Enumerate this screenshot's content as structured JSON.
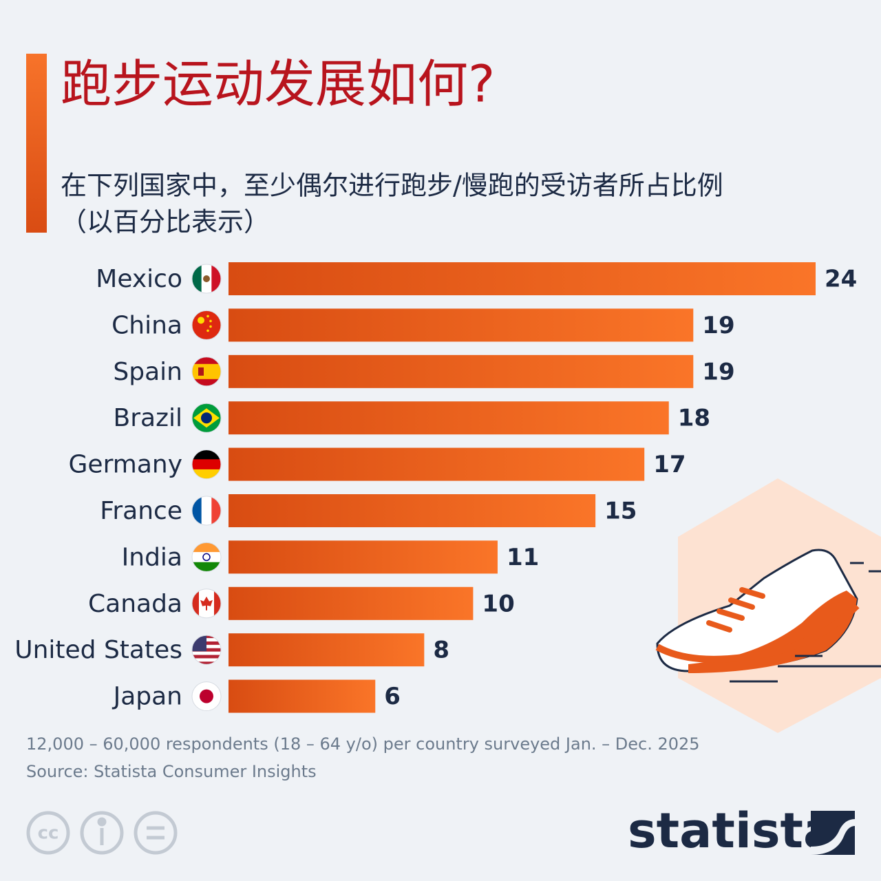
{
  "chart_data": {
    "type": "bar",
    "orientation": "horizontal",
    "title": "跑步运动发展如何?",
    "subtitle": [
      "在下列国家中，至少偶尔进行跑步/慢跑的受访者所占比例",
      "（以百分比表示）"
    ],
    "categories": [
      "Mexico",
      "China",
      "Spain",
      "Brazil",
      "Germany",
      "France",
      "India",
      "Canada",
      "United States",
      "Japan"
    ],
    "values": [
      24,
      19,
      19,
      18,
      17,
      15,
      11,
      10,
      8,
      6
    ],
    "color": "#e85a1b",
    "note": "12,000 – 60,000 respondents (18 – 64 y/o) per country surveyed Jan. – Dec. 2025",
    "source": "Source: Statista Consumer Insights",
    "logo": "statista",
    "license": "cc"
  }
}
